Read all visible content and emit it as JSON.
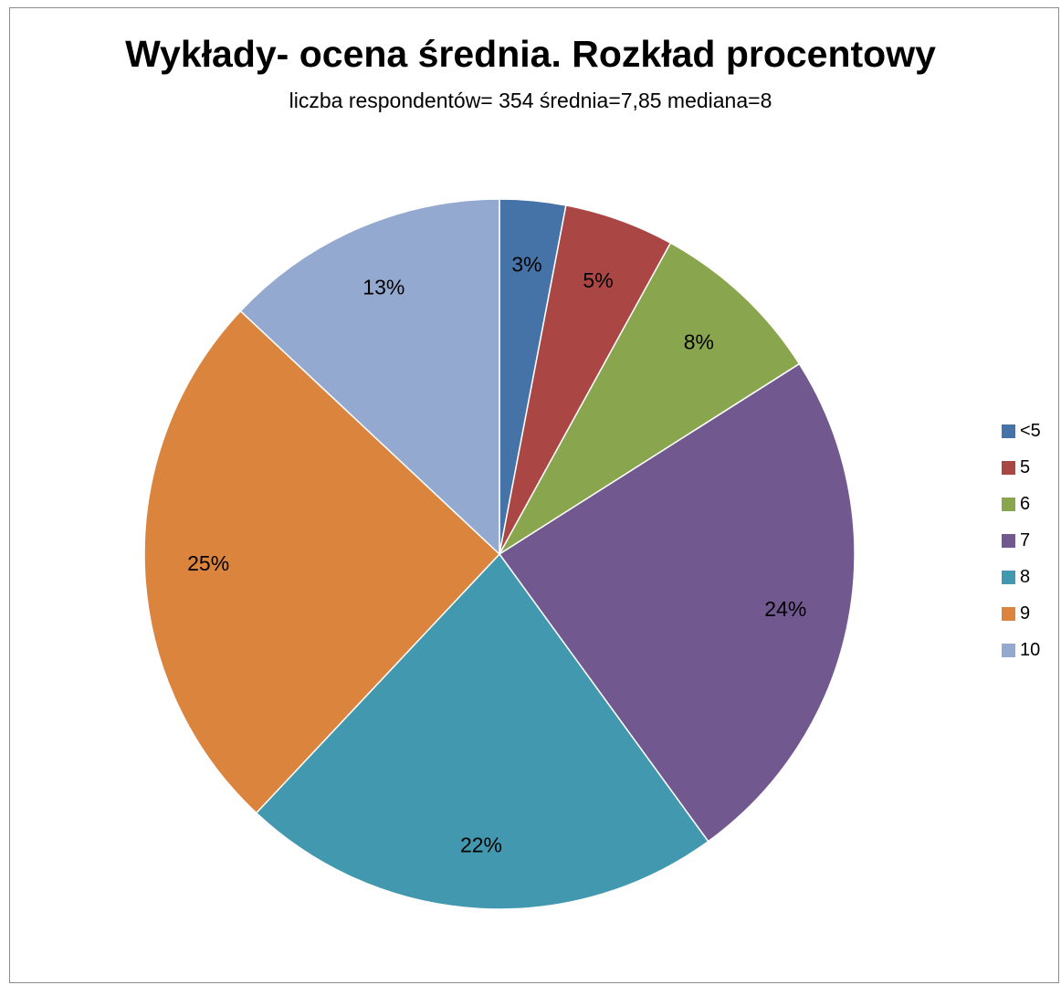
{
  "chart_data": {
    "type": "pie",
    "title": "Wykłady- ocena średnia. Rozkład procentowy",
    "subtitle": "liczba respondentów= 354 średnia=7,85 mediana=8",
    "categories": [
      "<5",
      "5",
      "6",
      "7",
      "8",
      "9",
      "10"
    ],
    "values": [
      3,
      5,
      8,
      24,
      22,
      25,
      13
    ],
    "labels": [
      "3%",
      "5%",
      "8%",
      "24%",
      "22%",
      "25%",
      "13%"
    ],
    "unit": "%",
    "start": "12 o'clock",
    "direction": "clockwise",
    "legend_position": "right",
    "colors": [
      "#4572a7",
      "#aa4643",
      "#89a54e",
      "#71588f",
      "#4198af",
      "#db843d",
      "#93a9cf"
    ]
  }
}
